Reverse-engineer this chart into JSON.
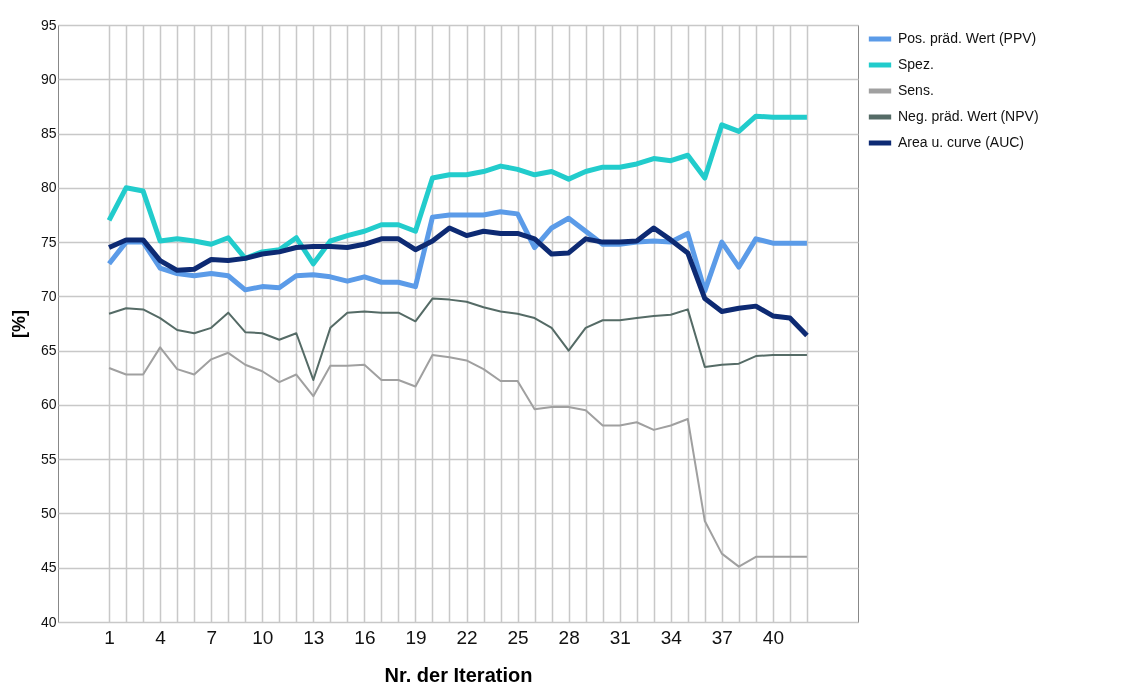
{
  "chart_data": {
    "type": "line",
    "xlabel": "Nr. der Iteration",
    "ylabel": "[%]",
    "grid": true,
    "legend": "top right",
    "xlim": [
      -2,
      45
    ],
    "ylim": [
      40,
      95
    ],
    "yticks": [
      40,
      45,
      50,
      55,
      60,
      65,
      70,
      75,
      80,
      85,
      90,
      95
    ],
    "xticks": [
      1,
      {
        "value": 2,
        "label": null
      },
      {
        "value": 3,
        "label": null
      },
      4,
      {
        "value": 5,
        "label": null
      },
      {
        "value": 6,
        "label": null
      },
      7,
      {
        "value": 8,
        "label": null
      },
      {
        "value": 9,
        "label": null
      },
      10,
      {
        "value": 11,
        "label": null
      },
      {
        "value": 12,
        "label": null
      },
      13,
      {
        "value": 14,
        "label": null
      },
      {
        "value": 15,
        "label": null
      },
      16,
      {
        "value": 17,
        "label": null
      },
      {
        "value": 18,
        "label": null
      },
      19,
      {
        "value": 20,
        "label": null
      },
      {
        "value": 21,
        "label": null
      },
      22,
      {
        "value": 23,
        "label": null
      },
      {
        "value": 24,
        "label": null
      },
      25,
      {
        "value": 26,
        "label": null
      },
      {
        "value": 27,
        "label": null
      },
      28,
      {
        "value": 29,
        "label": null
      },
      {
        "value": 30,
        "label": null
      },
      31,
      {
        "value": 32,
        "label": null
      },
      {
        "value": 33,
        "label": null
      },
      34,
      {
        "value": 35,
        "label": null
      },
      {
        "value": 36,
        "label": null
      },
      37,
      {
        "value": 38,
        "label": null
      },
      {
        "value": 39,
        "label": null
      },
      40,
      {
        "value": 41,
        "label": null
      },
      {
        "value": 42,
        "label": null
      }
    ],
    "x": [
      1,
      2,
      3,
      4,
      5,
      6,
      7,
      8,
      9,
      10,
      11,
      12,
      13,
      14,
      15,
      16,
      17,
      18,
      19,
      20,
      21,
      22,
      23,
      24,
      25,
      26,
      27,
      28,
      29,
      30,
      31,
      32,
      33,
      34,
      35,
      36,
      37,
      38,
      39,
      40,
      41,
      42
    ],
    "series": [
      {
        "name": "Pos. präd. Wert (PPV)",
        "color": "#5b9be8",
        "values": [
          73.0,
          75.0,
          75.0,
          72.6,
          72.1,
          71.9,
          72.1,
          71.9,
          70.6,
          70.9,
          70.8,
          71.9,
          72.0,
          71.8,
          71.4,
          71.8,
          71.3,
          71.3,
          70.9,
          77.3,
          77.5,
          77.5,
          77.5,
          77.8,
          77.6,
          74.5,
          76.3,
          77.2,
          76.0,
          74.8,
          74.8,
          75.0,
          75.1,
          75.0,
          75.8,
          70.5,
          75.0,
          72.7,
          75.3,
          74.9,
          74.9,
          74.9
        ]
      },
      {
        "name": "Spez.",
        "color": "#22cccc",
        "values": [
          77.0,
          80.0,
          79.7,
          75.1,
          75.3,
          75.1,
          74.8,
          75.4,
          73.5,
          74.1,
          74.3,
          75.4,
          73.0,
          75.1,
          75.6,
          76.0,
          76.6,
          76.6,
          76.0,
          80.9,
          81.2,
          81.2,
          81.5,
          82.0,
          81.7,
          81.2,
          81.5,
          80.8,
          81.5,
          81.9,
          81.9,
          82.2,
          82.7,
          82.5,
          83.0,
          80.9,
          85.8,
          85.2,
          86.6,
          86.5,
          86.5,
          86.5
        ]
      },
      {
        "name": "Sens.",
        "color": "#a0a0a0",
        "values": [
          63.4,
          62.8,
          62.8,
          65.3,
          63.3,
          62.8,
          64.2,
          64.8,
          63.7,
          63.1,
          62.1,
          62.8,
          60.8,
          63.6,
          63.6,
          63.7,
          62.3,
          62.3,
          61.7,
          64.6,
          64.4,
          64.1,
          63.3,
          62.2,
          62.2,
          59.6,
          59.8,
          59.8,
          59.5,
          58.1,
          58.1,
          58.4,
          57.7,
          58.1,
          58.7,
          49.3,
          46.3,
          45.1,
          46.0,
          46.0,
          46.0,
          46.0
        ]
      },
      {
        "name": "Neg. präd. Wert (NPV)",
        "color": "#556b66",
        "values": [
          68.4,
          68.9,
          68.8,
          68.0,
          66.9,
          66.6,
          67.1,
          68.5,
          66.7,
          66.6,
          66.0,
          66.6,
          62.3,
          67.1,
          68.5,
          68.6,
          68.5,
          68.5,
          67.7,
          69.8,
          69.7,
          69.5,
          69.0,
          68.6,
          68.4,
          68.0,
          67.1,
          65.0,
          67.1,
          67.8,
          67.8,
          68.0,
          68.2,
          68.3,
          68.8,
          63.5,
          63.7,
          63.8,
          64.5,
          64.6,
          64.6,
          64.6
        ]
      },
      {
        "name": "Area u. curve (AUC)",
        "color": "#0d2a73",
        "values": [
          74.5,
          75.2,
          75.2,
          73.3,
          72.4,
          72.5,
          73.4,
          73.3,
          73.5,
          73.9,
          74.1,
          74.5,
          74.6,
          74.6,
          74.5,
          74.8,
          75.3,
          75.3,
          74.3,
          75.1,
          76.3,
          75.6,
          76.0,
          75.8,
          75.8,
          75.3,
          73.9,
          74.0,
          75.3,
          75.0,
          75.0,
          75.1,
          76.3,
          75.2,
          74.0,
          69.8,
          68.6,
          68.9,
          69.1,
          68.2,
          68.0,
          66.4
        ]
      }
    ]
  }
}
